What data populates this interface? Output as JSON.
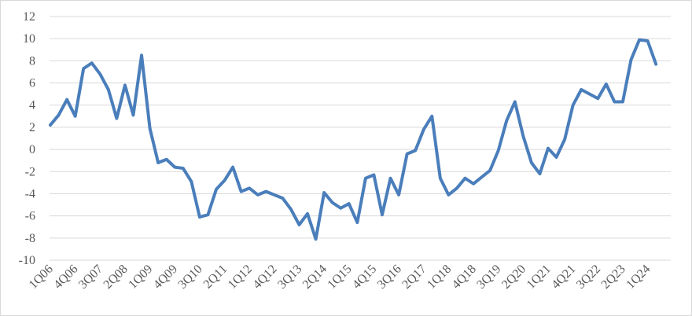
{
  "chart_data": {
    "type": "line",
    "title": "",
    "xlabel": "",
    "ylabel": "",
    "ylim": [
      -10,
      12
    ],
    "y_ticks": [
      12,
      10,
      8,
      6,
      4,
      2,
      0,
      -2,
      -4,
      -6,
      -8,
      -10
    ],
    "grid": true,
    "legend": "none",
    "x_tick_labels": [
      "1Q06",
      "4Q06",
      "3Q07",
      "2Q08",
      "1Q09",
      "4Q09",
      "3Q10",
      "2Q11",
      "1Q12",
      "4Q12",
      "3Q13",
      "2Q14",
      "1Q15",
      "4Q15",
      "3Q16",
      "2Q17",
      "1Q18",
      "4Q18",
      "3Q19",
      "2Q20",
      "1Q21",
      "4Q21",
      "3Q22",
      "2Q23",
      "1Q24"
    ],
    "x_tick_every": 3,
    "x": [
      "1Q06",
      "2Q06",
      "3Q06",
      "4Q06",
      "1Q07",
      "2Q07",
      "3Q07",
      "4Q07",
      "1Q08",
      "2Q08",
      "3Q08",
      "4Q08",
      "1Q09",
      "2Q09",
      "3Q09",
      "4Q09",
      "1Q10",
      "2Q10",
      "3Q10",
      "4Q10",
      "1Q11",
      "2Q11",
      "3Q11",
      "4Q11",
      "1Q12",
      "2Q12",
      "3Q12",
      "4Q12",
      "1Q13",
      "2Q13",
      "3Q13",
      "4Q13",
      "1Q14",
      "2Q14",
      "3Q14",
      "4Q14",
      "1Q15",
      "2Q15",
      "3Q15",
      "4Q15",
      "1Q16",
      "2Q16",
      "3Q16",
      "4Q16",
      "1Q17",
      "2Q17",
      "3Q17",
      "4Q17",
      "1Q18",
      "2Q18",
      "3Q18",
      "4Q18",
      "1Q19",
      "2Q19",
      "3Q19",
      "4Q19",
      "1Q20",
      "2Q20",
      "3Q20",
      "4Q20",
      "1Q21",
      "2Q21",
      "3Q21",
      "4Q21",
      "1Q22",
      "2Q22",
      "3Q22",
      "4Q22",
      "1Q23",
      "2Q23",
      "3Q23",
      "4Q23",
      "1Q24",
      "2Q24"
    ],
    "series": [
      {
        "color": "#4a7ebb",
        "values": [
          2.2,
          3.1,
          4.5,
          3.0,
          7.3,
          7.8,
          6.8,
          5.4,
          2.8,
          5.8,
          3.1,
          8.5,
          1.9,
          -1.2,
          -0.9,
          -1.6,
          -1.7,
          -2.9,
          -6.1,
          -5.9,
          -3.6,
          -2.8,
          -1.6,
          -3.8,
          -3.5,
          -4.1,
          -3.8,
          -4.1,
          -4.4,
          -5.4,
          -6.8,
          -5.8,
          -8.1,
          -3.9,
          -4.8,
          -5.3,
          -4.9,
          -6.6,
          -2.6,
          -2.3,
          -5.9,
          -2.6,
          -4.1,
          -0.4,
          -0.1,
          1.8,
          3.0,
          -2.6,
          -4.1,
          -3.5,
          -2.6,
          -3.1,
          -2.5,
          -1.9,
          -0.1,
          2.6,
          4.3,
          1.2,
          -1.2,
          -2.2,
          0.1,
          -0.7,
          0.9,
          4.0,
          5.4,
          5.0,
          4.6,
          5.9,
          4.3,
          4.3,
          8.1,
          9.9,
          9.8,
          7.7
        ]
      }
    ]
  }
}
